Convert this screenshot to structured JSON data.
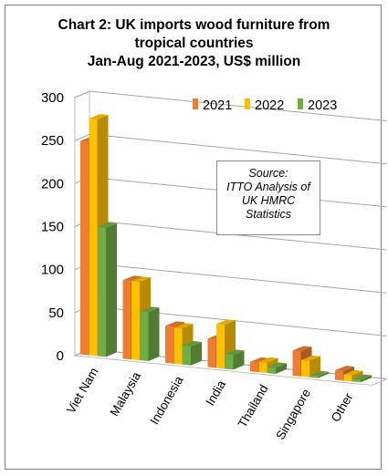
{
  "title": {
    "line1": "Chart 2: UK imports wood furniture from",
    "line2": "tropical countries",
    "line3": "Jan-Aug 2021-2023, US$ million"
  },
  "source": {
    "line1": "Source:",
    "line2": "ITTO Analysis of",
    "line3": "UK HMRC",
    "line4": "Statistics"
  },
  "chart_data": {
    "type": "bar",
    "title": "Chart 2: UK imports wood furniture from tropical countries Jan-Aug 2021-2023, US$ million",
    "categories": [
      "Viet Nam",
      "Malaysia",
      "Indonesia",
      "India",
      "Thailand",
      "Singapore",
      "Other"
    ],
    "series": [
      {
        "name": "2021",
        "color": "#ED7D31",
        "values": [
          248,
          91,
          43,
          33,
          11,
          29,
          11
        ]
      },
      {
        "name": "2022",
        "color": "#FFC000",
        "values": [
          275,
          91,
          42,
          51,
          12,
          19,
          7
        ]
      },
      {
        "name": "2023",
        "color": "#70AD47",
        "values": [
          150,
          57,
          22,
          17,
          7,
          2,
          3
        ]
      }
    ],
    "yticks": [
      0,
      50,
      100,
      150,
      200,
      250,
      300
    ],
    "ylim": [
      0,
      300
    ],
    "grid": true,
    "legend": "top-right",
    "style": "3d-clustered-column"
  }
}
